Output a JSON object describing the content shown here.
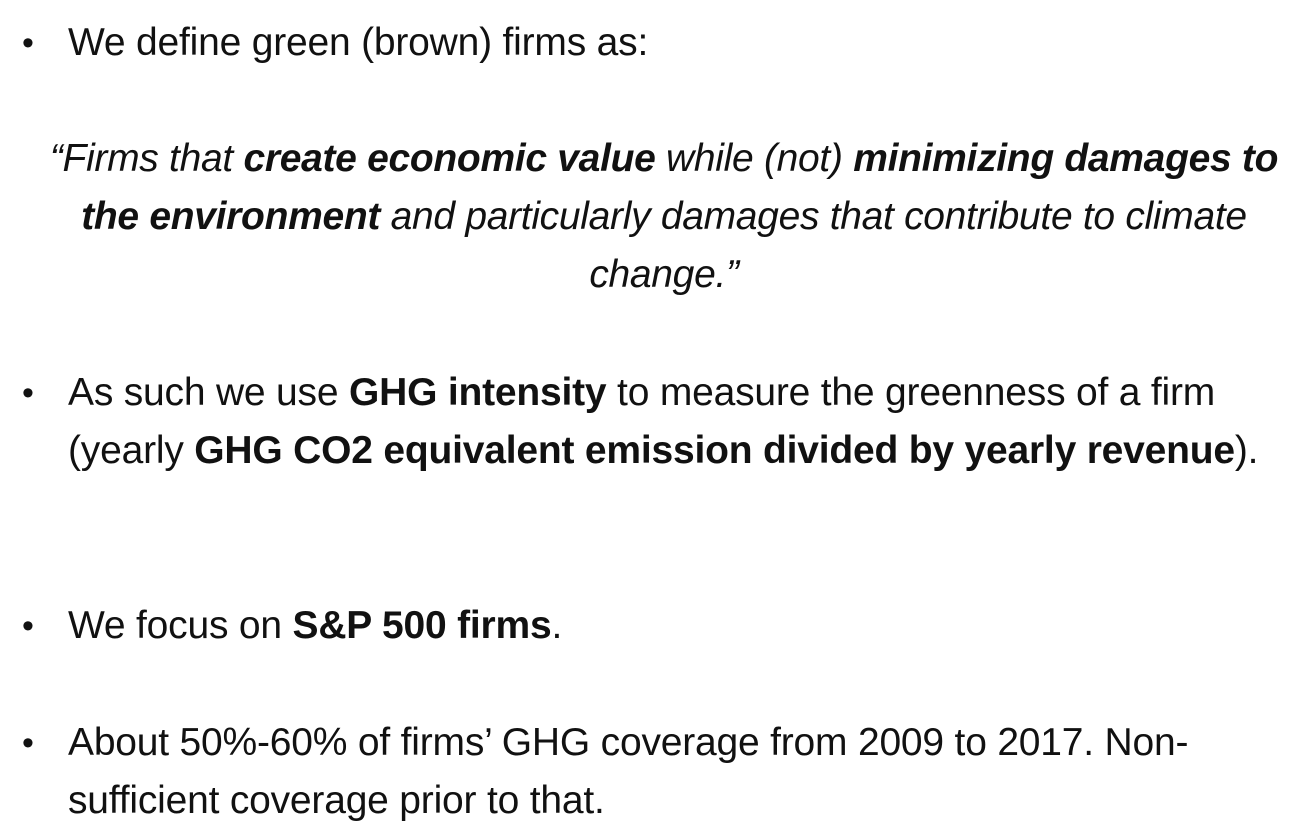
{
  "bullet_symbol": "•",
  "bullet1": {
    "text": "We define green (brown) firms as:"
  },
  "quote": {
    "p1": "“Firms that ",
    "b1": "create economic value",
    "p2": " while (not) ",
    "b2": "minimizing damages to the environment",
    "p3": " and particularly damages that contribute to climate change.”"
  },
  "bullet2": {
    "p1": "As such we use ",
    "b1": "GHG intensity",
    "p2": " to measure the greenness of a firm (yearly ",
    "b2": "GHG CO2 equivalent emission divided by yearly revenue",
    "p3": ")."
  },
  "bullet3": {
    "p1": "We focus on ",
    "b1": "S&P 500 firms",
    "p2": "."
  },
  "bullet4": {
    "text": "About 50%-60% of firms’ GHG coverage from 2009 to 2017. Non-sufficient coverage prior to that."
  }
}
